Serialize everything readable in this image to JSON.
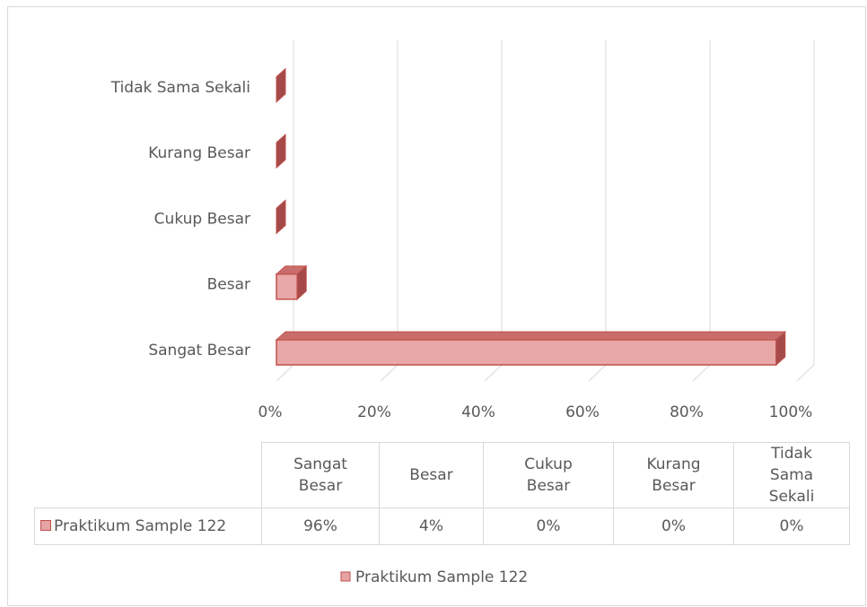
{
  "chart_data": {
    "type": "bar3d_horizontal",
    "categories": [
      "Sangat Besar",
      "Besar",
      "Cukup Besar",
      "Kurang Besar",
      "Tidak Sama Sekali"
    ],
    "series": [
      {
        "name": "Praktikum Sample 122",
        "color": "#c0504d",
        "values": [
          96,
          4,
          0,
          0,
          0
        ],
        "value_labels": [
          "96%",
          "4%",
          "0%",
          "0%",
          "0%"
        ]
      }
    ],
    "xlim": [
      0,
      100
    ],
    "xticks": [
      {
        "value": 0,
        "label": "0%"
      },
      {
        "value": 20,
        "label": "20%"
      },
      {
        "value": 40,
        "label": "40%"
      },
      {
        "value": 60,
        "label": "60%"
      },
      {
        "value": 80,
        "label": "80%"
      },
      {
        "value": 100,
        "label": "100%"
      }
    ],
    "grid": true,
    "legend": "bottom",
    "data_table": true
  }
}
